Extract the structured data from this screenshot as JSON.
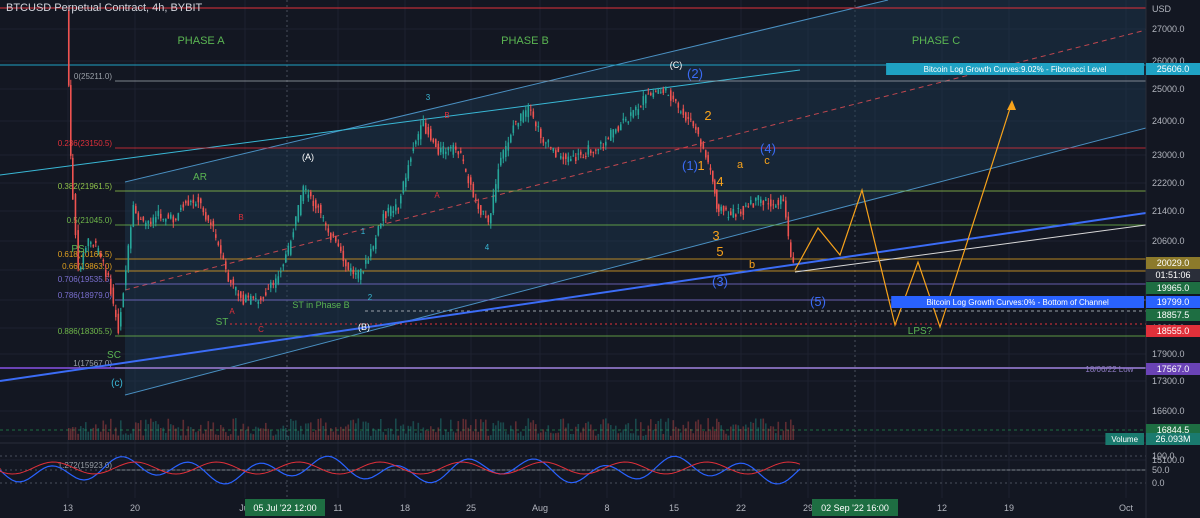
{
  "header": {
    "symbol_title": "BTCUSD Perpetual Contract, 4h, BYBIT"
  },
  "colors": {
    "background": "#131722",
    "grid": "#1e2230",
    "up_candle": "#26a69a",
    "down_candle": "#ef5350",
    "channel_fill": "#1d3a52",
    "channel_line": "#4a90c2",
    "trend_blue": "#3b6cf6",
    "projection": "#f7a21b"
  },
  "chart_data": [
    {
      "type": "candlestick",
      "title": "BTCUSD Perpetual Contract, 4h, BYBIT",
      "x_tick_labels": [
        "13",
        "20",
        "Jul",
        "11",
        "18",
        "25",
        "Aug",
        "8",
        "15",
        "22",
        "29",
        "5",
        "12",
        "19",
        "Oct"
      ],
      "x_highlight_labels": [
        "05 Jul '22",
        "12:00",
        "02 Sep '22",
        "16:00"
      ],
      "y_tick_labels": [
        "USD",
        "27000.0",
        "26000.0",
        "25000.0",
        "24000.0",
        "23000.0",
        "22200.0",
        "21400.0",
        "20600.0",
        "19800.0",
        "19000.0",
        "18200.0",
        "17900.0",
        "17300.0",
        "16600.0",
        "15900.0",
        "15100.0"
      ],
      "price_badges": [
        {
          "label": "Bitcoin Log Growth Curves:9.02% - Fibonacci Level",
          "value": "25606.0",
          "color": "#1fa2c4"
        },
        {
          "label": "",
          "value": "20029.0",
          "color": "#8c7a2b"
        },
        {
          "label": "",
          "value": "01:51:06",
          "color": "#2a2e39"
        },
        {
          "label": "",
          "value": "19965.0",
          "color": "#1e6e42"
        },
        {
          "label": "Bitcoin Log Growth Curves:0% - Bottom of Channel",
          "value": "19799.0",
          "color": "#2962ff"
        },
        {
          "label": "",
          "value": "18857.5",
          "color": "#1e6e42"
        },
        {
          "label": "",
          "value": "18555.0",
          "color": "#e0303a"
        },
        {
          "label": "18/06/22 Low",
          "value": "17567.0",
          "color": "#6a43b5"
        },
        {
          "label": "",
          "value": "16844.5",
          "color": "#1e6e42"
        },
        {
          "label": "Volume",
          "value": "26.093M",
          "color": "#1a7a6e"
        }
      ],
      "fib_levels": [
        {
          "label": "0(25211.0)",
          "value": 25211.0
        },
        {
          "label": "0.236(23150.5)",
          "value": 23150.5
        },
        {
          "label": "0.382(21961.5)",
          "value": 21961.5
        },
        {
          "label": "0.5(21045.0)",
          "value": 21045.0
        },
        {
          "label": "0.618(20166.5)",
          "value": 20166.5
        },
        {
          "label": "0.66(19863.0)",
          "value": 19863.0
        },
        {
          "label": "0.706(19535.5)",
          "value": 19535.5
        },
        {
          "label": "0.786(18979.0)",
          "value": 18979.0
        },
        {
          "label": "0.886(18305.5)",
          "value": 18305.5
        },
        {
          "label": "1(17567.0)",
          "value": 17567.0
        },
        {
          "label": "1.272(15923.0)",
          "value": 15923.0
        }
      ],
      "phases": [
        "PHASE A",
        "PHASE B",
        "PHASE C"
      ],
      "annotations": [
        "AR",
        "PS",
        "SC",
        "ST",
        "ST in Phase B",
        "LPS?",
        "ST",
        "(A)",
        "(B)",
        "(C)",
        "(c)",
        "A",
        "B",
        "C",
        "A",
        "B",
        "1",
        "2",
        "3",
        "4",
        "(1)",
        "(2)",
        "(3)",
        "(4)",
        "(5)",
        "1",
        "2",
        "3",
        "4",
        "5",
        "a",
        "b",
        "c"
      ],
      "oscillator": {
        "y_tick_labels": [
          "100.0",
          "50.0",
          "0.0"
        ]
      }
    }
  ]
}
